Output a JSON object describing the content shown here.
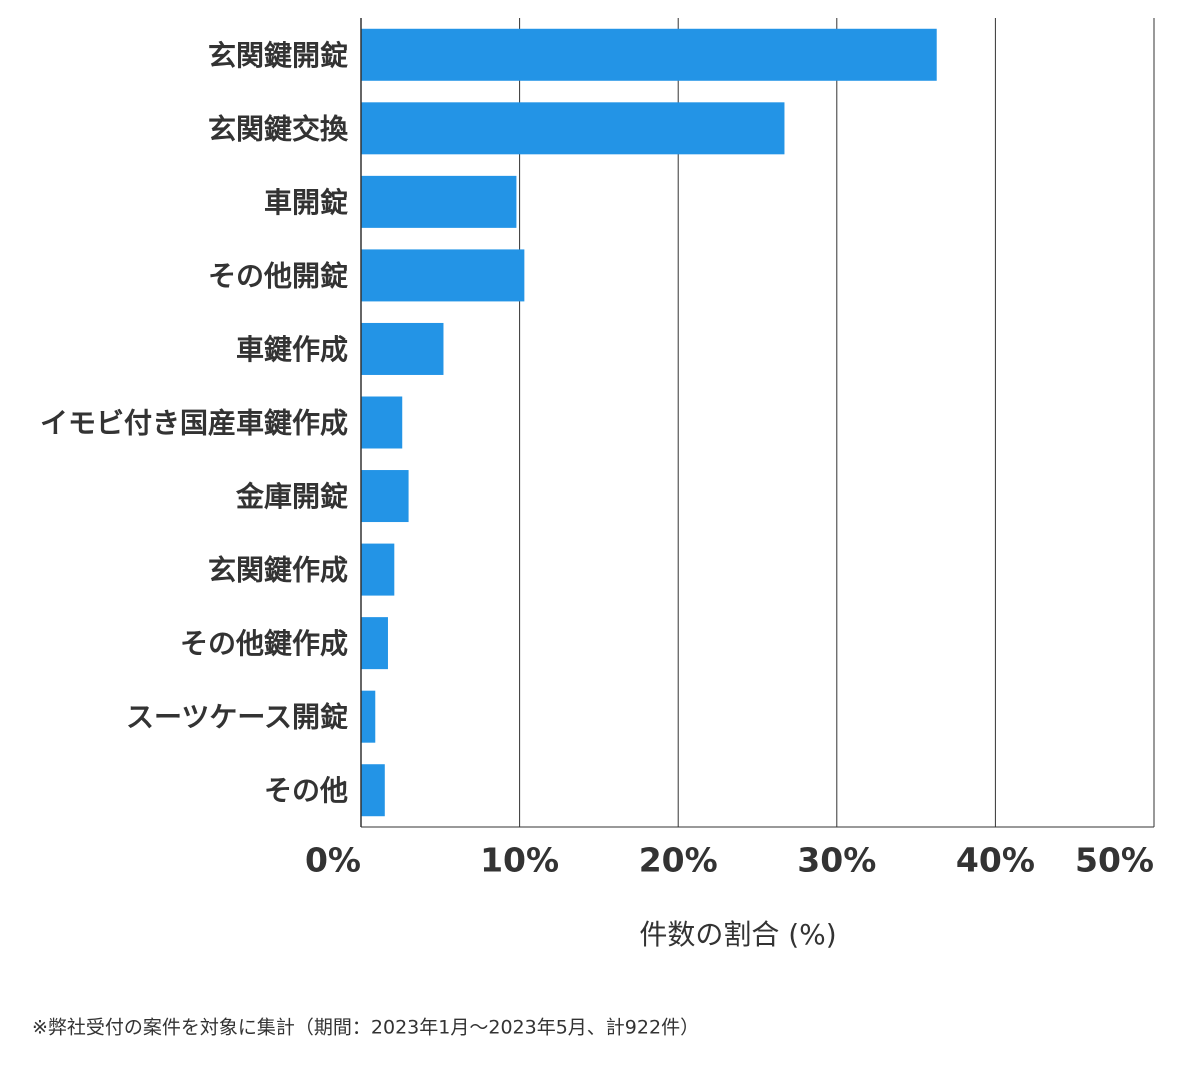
{
  "chart_data": {
    "type": "bar",
    "orientation": "horizontal",
    "categories": [
      "玄関鍵開錠",
      "玄関鍵交換",
      "車開錠",
      "その他開錠",
      "車鍵作成",
      "イモビ付き国産車鍵作成",
      "金庫開錠",
      "玄関鍵作成",
      "その他鍵作成",
      "スーツケース開錠",
      "その他"
    ],
    "values": [
      36.3,
      26.7,
      9.8,
      10.3,
      5.2,
      2.6,
      3.0,
      2.1,
      1.7,
      0.9,
      1.5
    ],
    "color": "#2394e6",
    "xlim": [
      0,
      50
    ],
    "xticks": [
      {
        "value": 0,
        "label": "0%"
      },
      {
        "value": 10,
        "label": "10%"
      },
      {
        "value": 20,
        "label": "20%"
      },
      {
        "value": 30,
        "label": "30%"
      },
      {
        "value": 40,
        "label": "40%"
      },
      {
        "value": 50,
        "label": "50%"
      }
    ],
    "grid": true,
    "x_label": "件数の割合 (%)",
    "footnote": "※弊社受付の案件を対象に集計（期間：2023年1月～2023年5月、計922件）"
  }
}
